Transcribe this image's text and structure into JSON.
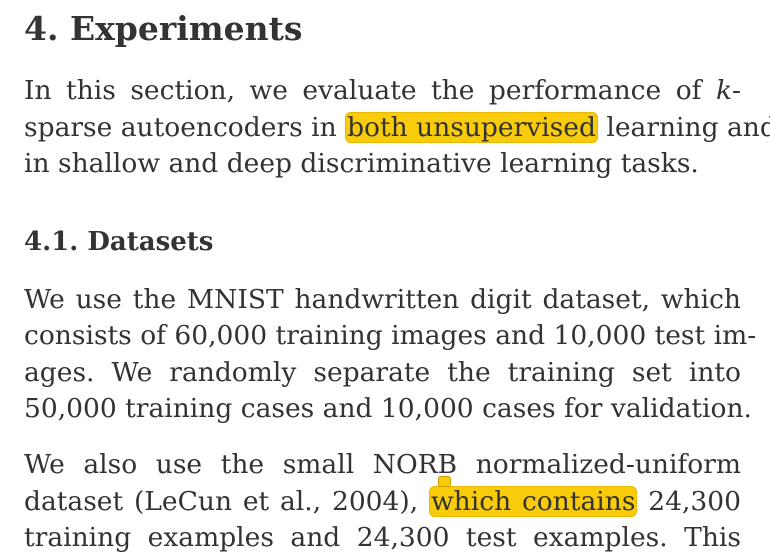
{
  "section": {
    "title": "4. Experiments",
    "paragraph": {
      "line1_a": "In this section, we evaluate the performance of ",
      "line1_k": "k",
      "line1_b": "-",
      "line2_a": "sparse autoencoders in ",
      "line2_highlight": "both unsupervised",
      "line2_b": " learning and",
      "line3": "in shallow and deep discriminative learning tasks."
    }
  },
  "subsection": {
    "title": "4.1. Datasets",
    "paragraph1": {
      "line1": "We use the MNIST handwritten digit dataset, which",
      "line2": "consists of 60,000 training images and 10,000 test im-",
      "line3": "ages. We randomly separate the training set into",
      "line4": "50,000 training cases and 10,000 cases for validation."
    },
    "paragraph2": {
      "line1": "We also use the small NORB normalized-uniform",
      "line2_a": "dataset (LeCun et al., 2004), ",
      "line2_highlight": "which contains",
      "line2_b": " 24,300",
      "line3": "training examples and 24,300 test examples. This"
    }
  },
  "colors": {
    "highlight": "#f9cc0b",
    "text": "#333333"
  }
}
